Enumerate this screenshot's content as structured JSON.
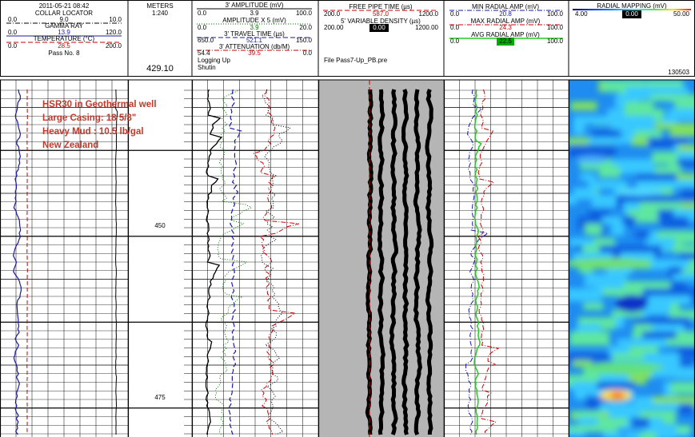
{
  "header": {
    "datetime": "2011-05-21 08:42",
    "collar_locator": {
      "name": "COLLAR LOCATOR",
      "min": "0.0",
      "current": "9.0",
      "max": "10.0"
    },
    "gamma_ray": {
      "name": "GAMMA RAY",
      "min": "0.0",
      "current": "13.9",
      "max": "120.0"
    },
    "temperature": {
      "name": "TEMPERATURE (°C)",
      "min": "0.0",
      "current": "28.5",
      "max": "200.0"
    },
    "pass": "Pass No. 8",
    "depth_unit": "METERS",
    "depth_scale": "1:240",
    "current_depth": "429.10",
    "amplitude": {
      "name": "3' AMPLITUDE (mV)",
      "min": "0.0",
      "current": "3.9",
      "max": "100.0"
    },
    "amplitude_x5": {
      "name": "AMPLITUDE X 5 (mV)",
      "min": "0.0",
      "current": "3.9",
      "max": "20.0"
    },
    "travel_time": {
      "name": "3' TRAVEL TIME (µs)",
      "min": "650.0",
      "current": "521.1",
      "max": "150.0"
    },
    "attenuation": {
      "name": "3' ATTENUATION (db/M)",
      "min": "54.4",
      "current": "39.5",
      "max": "0.0"
    },
    "logging": "Logging Up",
    "shutin": "Shutin",
    "free_pipe": {
      "name": "FREE PIPE TIME (µs)",
      "min": "200.0",
      "current": "587.0",
      "max": "1200.0"
    },
    "vdl": {
      "name": "5' VARIABLE DENSITY (µs)",
      "min": "200.00",
      "current": "0.00",
      "max": "1200.00"
    },
    "file": "File Pass7-Up_PB.pre",
    "min_radial": {
      "name": "MIN RADIAL AMP (mV)",
      "min": "0.0",
      "current": "20.8",
      "max": "100.0"
    },
    "max_radial": {
      "name": "MAX RADIAL AMP (mV)",
      "min": "0.0",
      "current": "24.3",
      "max": "100.0"
    },
    "avg_radial": {
      "name": "AVG RADIAL AMP (mV)",
      "min": "0.0",
      "current": "22.5",
      "max": "100.0"
    },
    "radial_mapping": {
      "name": "RADIAL MAPPING (mV)",
      "min": "4.00",
      "current": "0.00",
      "max": "50.00"
    },
    "job": "130503"
  },
  "depth_labels": [
    "450",
    "475"
  ],
  "annotation": [
    "HSR30 in Geothermal well",
    "Large Casing:  18 5/8\"",
    "Heavy Mud :  10.5 lb/gal",
    "New Zealand"
  ]
}
